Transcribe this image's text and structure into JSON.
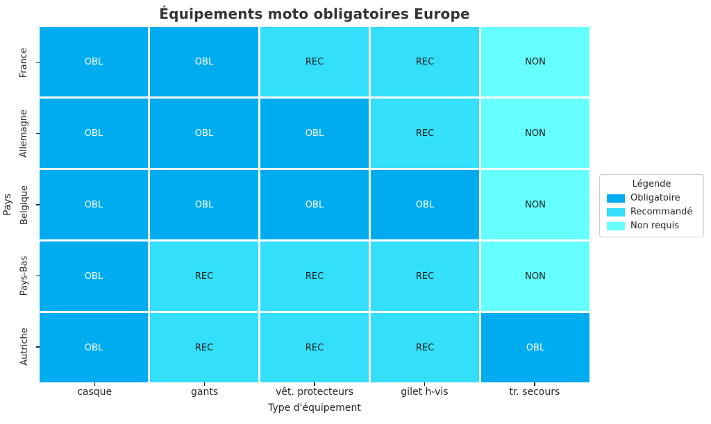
{
  "title": "Équipements moto obligatoires Europe",
  "axes": {
    "x_label": "Type d'équipement",
    "y_label": "Pays"
  },
  "legend": {
    "title": "Légende",
    "entries": [
      {
        "label": "Obligatoire",
        "code": "OBL",
        "color": "#00ACF0"
      },
      {
        "label": "Recommandé",
        "code": "REC",
        "color": "#33DFF9"
      },
      {
        "label": "Non requis",
        "code": "NON",
        "color": "#66FFFF"
      }
    ]
  },
  "chart_data": {
    "type": "heatmap",
    "title": "Équipements moto obligatoires Europe",
    "xlabel": "Type d'équipement",
    "ylabel": "Pays",
    "x_categories": [
      "casque",
      "gants",
      "vêt. protecteurs",
      "gilet h-vis",
      "tr. secours"
    ],
    "y_categories": [
      "France",
      "Allemagne",
      "Belgique",
      "Pays-Bas",
      "Autriche"
    ],
    "values": [
      [
        "OBL",
        "OBL",
        "REC",
        "REC",
        "NON"
      ],
      [
        "OBL",
        "OBL",
        "OBL",
        "REC",
        "NON"
      ],
      [
        "OBL",
        "OBL",
        "OBL",
        "OBL",
        "NON"
      ],
      [
        "OBL",
        "REC",
        "REC",
        "REC",
        "NON"
      ],
      [
        "OBL",
        "REC",
        "REC",
        "REC",
        "OBL"
      ]
    ],
    "value_colors": {
      "OBL": "#00ACF0",
      "REC": "#33DFF9",
      "NON": "#66FFFF"
    },
    "value_text_colors": {
      "OBL": "#FFFFFF",
      "REC": "#1A1A1A",
      "NON": "#1A1A1A"
    },
    "legend_position": "right",
    "grid_line_color": "#FFFFFF"
  }
}
